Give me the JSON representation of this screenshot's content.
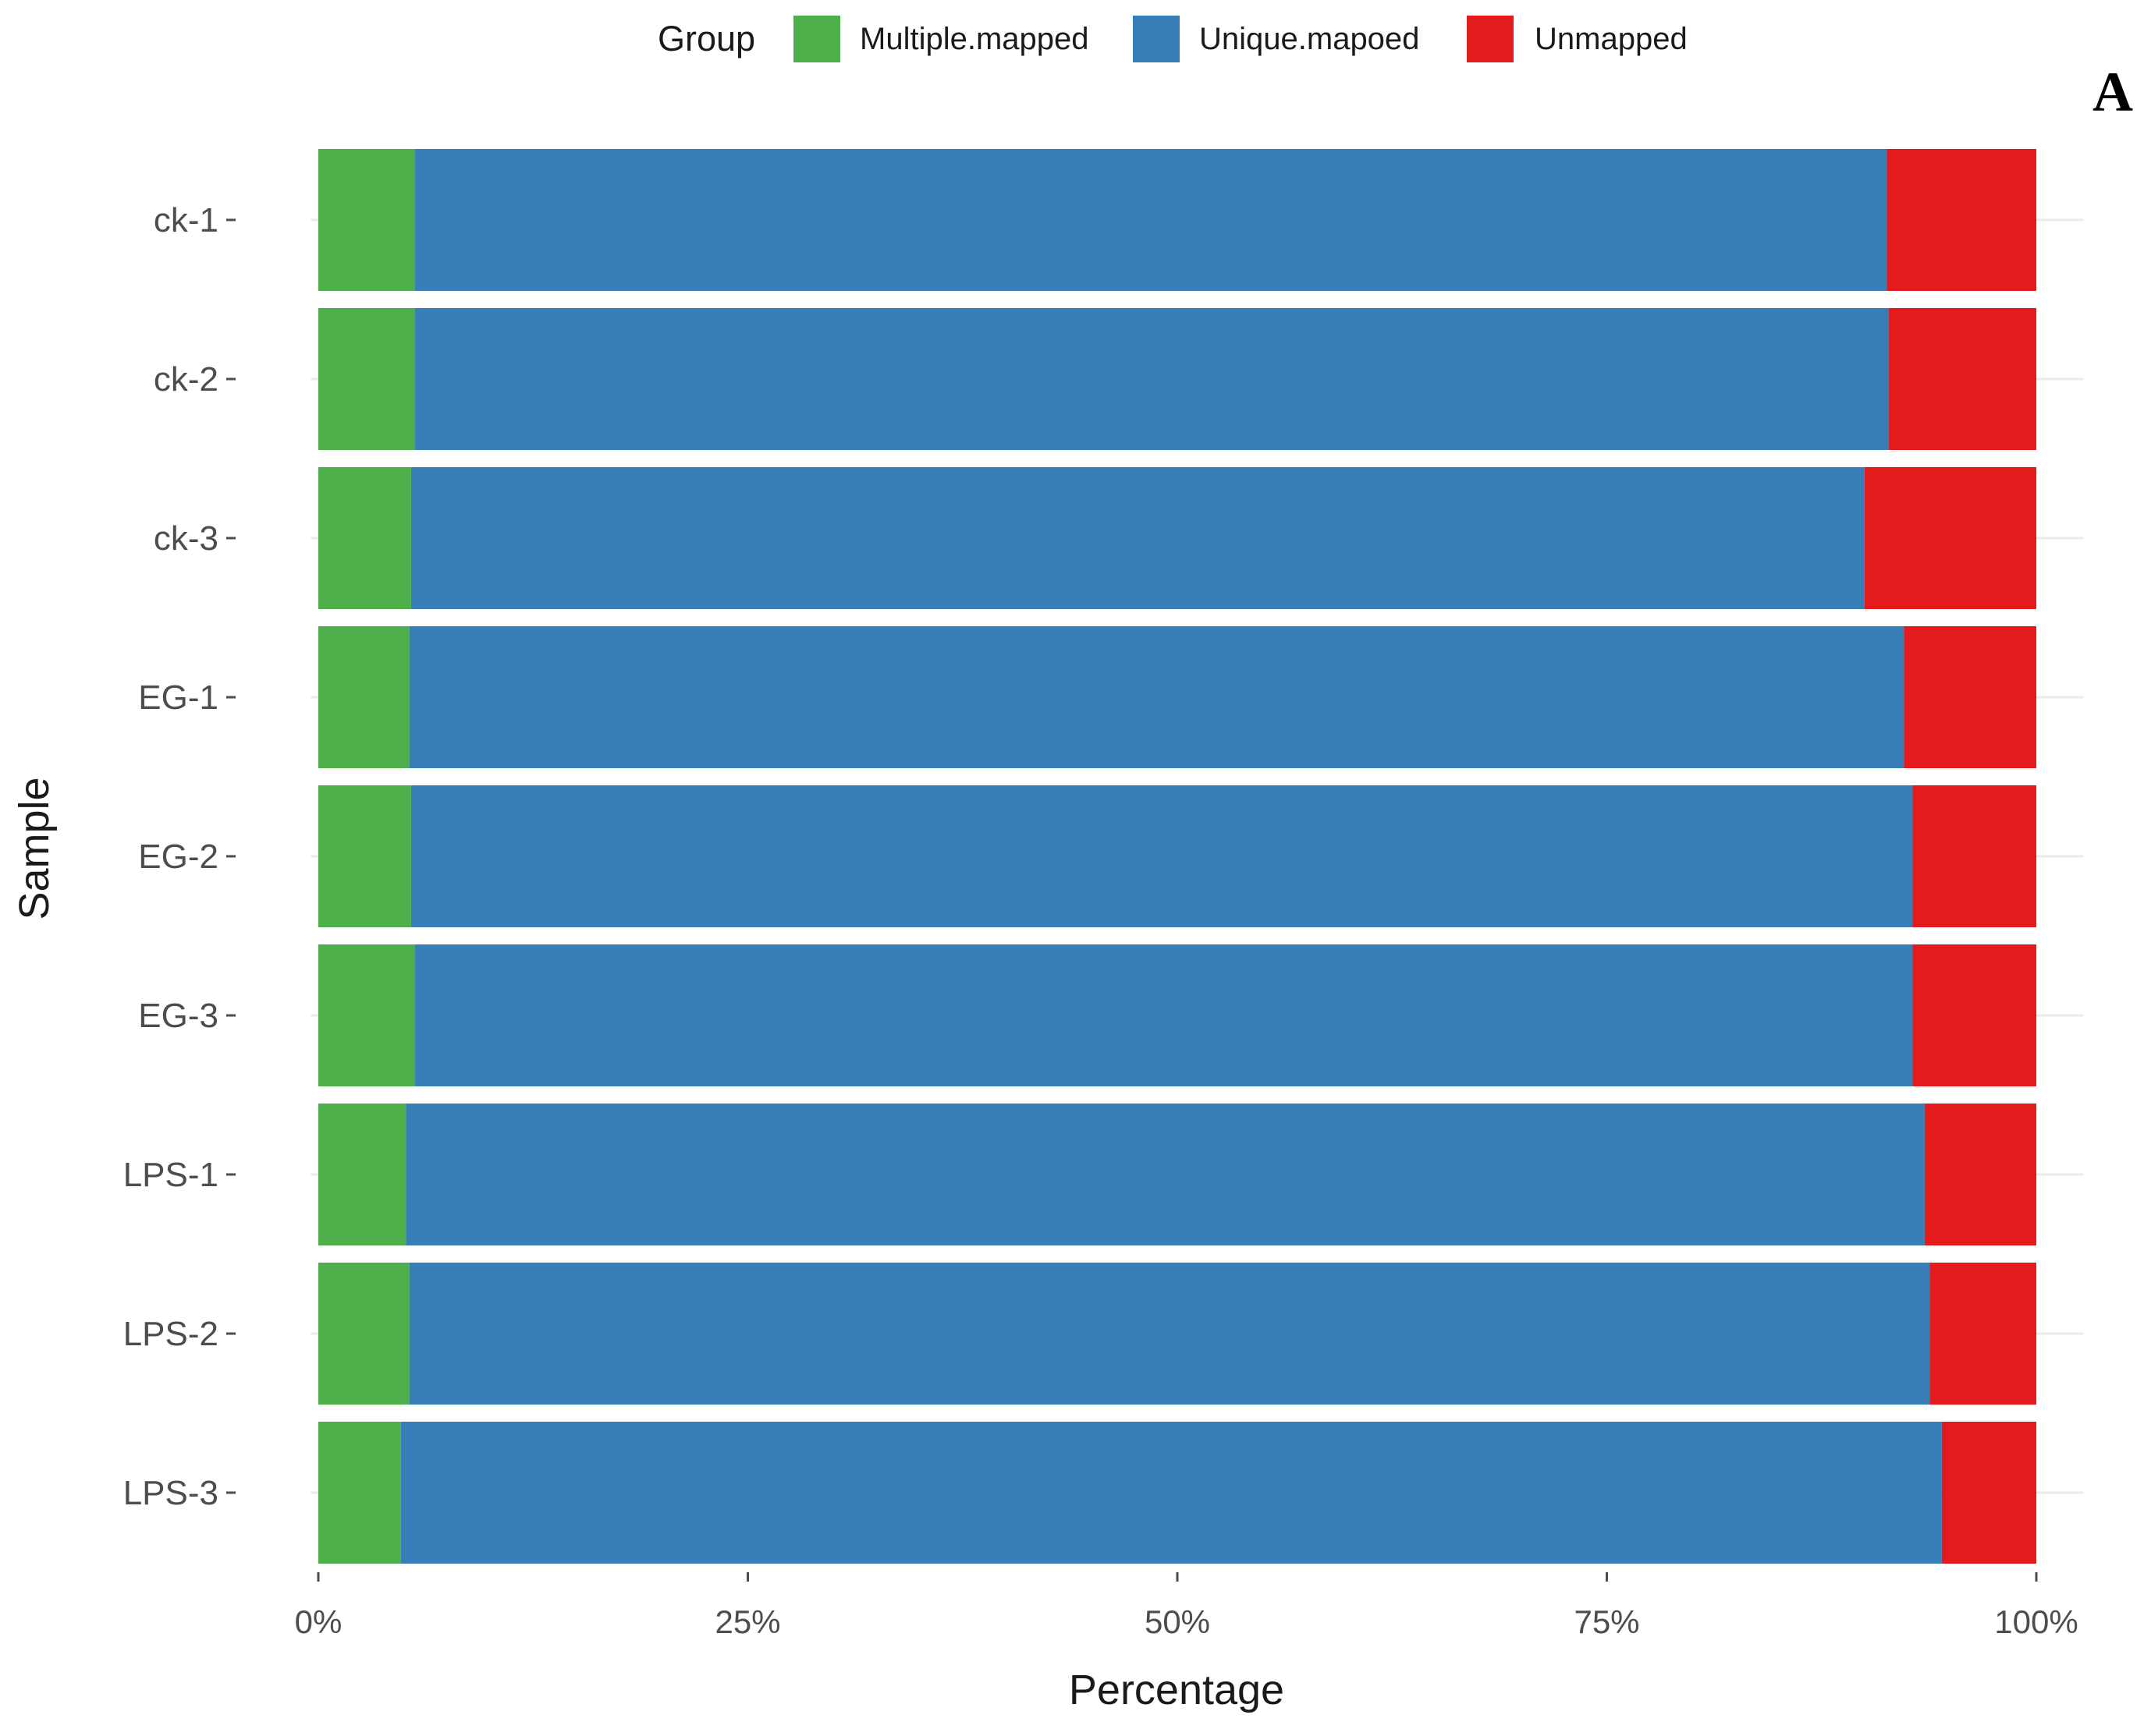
{
  "chart_data": {
    "type": "bar",
    "orientation": "horizontal",
    "stacked": true,
    "panel_label": "A",
    "xlabel": "Percentage",
    "ylabel": "Sample",
    "xlim": [
      0,
      100
    ],
    "x_ticks": [
      "0%",
      "25%",
      "50%",
      "75%",
      "100%"
    ],
    "x_tick_values": [
      0,
      25,
      50,
      75,
      100
    ],
    "grid": true,
    "legend": {
      "title": "Group",
      "position": "top"
    },
    "categories": [
      "ck-1",
      "ck-2",
      "ck-3",
      "EG-1",
      "EG-2",
      "EG-3",
      "LPS-1",
      "LPS-2",
      "LPS-3"
    ],
    "series": [
      {
        "name": "Multiple.mapped",
        "color": "#4DAF4A",
        "values": [
          5.6,
          5.6,
          5.4,
          5.3,
          5.4,
          5.6,
          5.1,
          5.3,
          4.8
        ]
      },
      {
        "name": "Unique.mapoed",
        "color": "#377EB8",
        "values": [
          85.7,
          85.8,
          84.6,
          87.0,
          87.4,
          87.2,
          88.4,
          88.5,
          89.7
        ]
      },
      {
        "name": "Unmapped",
        "color": "#E41A1C",
        "values": [
          8.7,
          8.6,
          10.0,
          7.7,
          7.2,
          7.2,
          6.5,
          6.2,
          5.5
        ]
      }
    ]
  }
}
